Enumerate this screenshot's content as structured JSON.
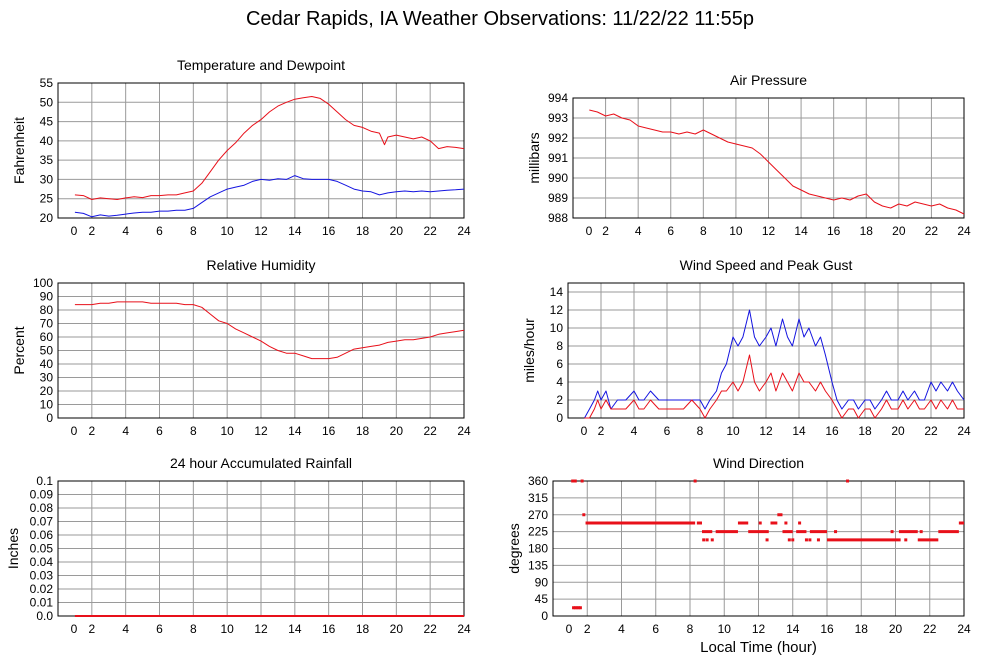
{
  "page": {
    "title": "Cedar Rapids, IA Weather Observations: 11/22/22 11:55p"
  },
  "colors": {
    "red": "#e8101a",
    "blue": "#1414e0",
    "grid": "#9a9a9a"
  },
  "chart_data": [
    {
      "id": "temp",
      "type": "line",
      "title": "Temperature and Dewpoint",
      "ylabel": "Fahrenheit",
      "xlabel": "",
      "xlim": [
        0,
        24
      ],
      "ylim": [
        20,
        55
      ],
      "xticks": [
        2,
        4,
        6,
        8,
        10,
        12,
        14,
        16,
        18,
        20,
        22,
        24
      ],
      "yticks": [
        20,
        25,
        30,
        35,
        40,
        45,
        50,
        55
      ],
      "grid": true,
      "series": [
        {
          "color": "red",
          "x": [
            1.0,
            1.5,
            2.0,
            2.5,
            3.0,
            3.5,
            4.0,
            4.5,
            5.0,
            5.5,
            6.0,
            6.5,
            7.0,
            7.5,
            8.0,
            8.5,
            9.0,
            9.5,
            10.0,
            10.5,
            11.0,
            11.5,
            12.0,
            12.5,
            13.0,
            13.5,
            14.0,
            14.5,
            15.0,
            15.5,
            16.0,
            16.5,
            17.0,
            17.5,
            18.0,
            18.5,
            19.0,
            19.3,
            19.5,
            20.0,
            20.5,
            21.0,
            21.5,
            22.0,
            22.5,
            23.0,
            23.5,
            24.0
          ],
          "y": [
            26,
            25.8,
            24.8,
            25.2,
            25.0,
            24.8,
            25.2,
            25.5,
            25.3,
            25.8,
            25.8,
            26.0,
            26.0,
            26.5,
            27.0,
            29.0,
            32.0,
            35.0,
            37.5,
            39.5,
            42.0,
            44.0,
            45.5,
            47.5,
            49.0,
            50.0,
            50.8,
            51.2,
            51.5,
            51.0,
            49.5,
            47.5,
            45.5,
            44.0,
            43.5,
            42.5,
            42.0,
            39.0,
            41.0,
            41.5,
            41.0,
            40.5,
            41.0,
            40.0,
            38.0,
            38.5,
            38.3,
            38.0
          ]
        },
        {
          "color": "blue",
          "x": [
            1.0,
            1.5,
            2.0,
            2.5,
            3.0,
            3.5,
            4.0,
            4.5,
            5.0,
            5.5,
            6.0,
            6.5,
            7.0,
            7.5,
            8.0,
            8.5,
            9.0,
            9.5,
            10.0,
            10.5,
            11.0,
            11.5,
            12.0,
            12.5,
            13.0,
            13.5,
            14.0,
            14.5,
            15.0,
            15.5,
            16.0,
            16.5,
            17.0,
            17.5,
            18.0,
            18.5,
            19.0,
            19.5,
            20.0,
            20.5,
            21.0,
            21.5,
            22.0,
            22.5,
            23.0,
            23.5,
            24.0
          ],
          "y": [
            21.5,
            21.2,
            20.3,
            20.8,
            20.5,
            20.7,
            21.0,
            21.3,
            21.5,
            21.5,
            21.8,
            21.8,
            22.0,
            22.0,
            22.5,
            24.0,
            25.5,
            26.5,
            27.5,
            28.0,
            28.5,
            29.5,
            30.0,
            29.8,
            30.2,
            30.0,
            31.0,
            30.2,
            30.0,
            30.0,
            30.0,
            29.5,
            28.5,
            27.5,
            27.0,
            26.8,
            26.0,
            26.5,
            26.8,
            27.0,
            26.8,
            27.0,
            26.8,
            27.0,
            27.2,
            27.3,
            27.5
          ]
        }
      ]
    },
    {
      "id": "pressure",
      "type": "line",
      "title": "Air Pressure",
      "ylabel": "millibars",
      "xlabel": "",
      "xlim": [
        0,
        24
      ],
      "ylim": [
        988,
        994
      ],
      "xticks": [
        2,
        4,
        6,
        8,
        10,
        12,
        14,
        16,
        18,
        20,
        22,
        24
      ],
      "yticks": [
        988,
        989,
        990,
        991,
        992,
        993,
        994
      ],
      "grid": true,
      "series": [
        {
          "color": "red",
          "x": [
            1.0,
            1.5,
            2.0,
            2.5,
            3.0,
            3.5,
            4.0,
            4.5,
            5.0,
            5.5,
            6.0,
            6.5,
            7.0,
            7.5,
            8.0,
            8.5,
            9.0,
            9.5,
            10.0,
            10.5,
            11.0,
            11.5,
            12.0,
            12.5,
            13.0,
            13.5,
            14.0,
            14.5,
            15.0,
            15.5,
            16.0,
            16.5,
            17.0,
            17.5,
            18.0,
            18.5,
            19.0,
            19.5,
            20.0,
            20.5,
            21.0,
            21.5,
            22.0,
            22.5,
            23.0,
            23.5,
            24.0
          ],
          "y": [
            993.4,
            993.3,
            993.1,
            993.2,
            993.0,
            992.9,
            992.6,
            992.5,
            992.4,
            992.3,
            992.3,
            992.2,
            992.3,
            992.2,
            992.4,
            992.2,
            992.0,
            991.8,
            991.7,
            991.6,
            991.5,
            991.2,
            990.8,
            990.4,
            990.0,
            989.6,
            989.4,
            989.2,
            989.1,
            989.0,
            988.9,
            989.0,
            988.9,
            989.1,
            989.2,
            988.8,
            988.6,
            988.5,
            988.7,
            988.6,
            988.8,
            988.7,
            988.6,
            988.7,
            988.5,
            988.4,
            988.2
          ]
        }
      ]
    },
    {
      "id": "humidity",
      "type": "line",
      "title": "Relative Humidity",
      "ylabel": "Percent",
      "xlabel": "",
      "xlim": [
        0,
        24
      ],
      "ylim": [
        0,
        100
      ],
      "xticks": [
        2,
        4,
        6,
        8,
        10,
        12,
        14,
        16,
        18,
        20,
        22,
        24
      ],
      "yticks": [
        0,
        10,
        20,
        30,
        40,
        50,
        60,
        70,
        80,
        90,
        100
      ],
      "grid": true,
      "series": [
        {
          "color": "red",
          "x": [
            1.0,
            1.5,
            2.0,
            2.5,
            3.0,
            3.5,
            4.0,
            4.5,
            5.0,
            5.5,
            6.0,
            6.5,
            7.0,
            7.5,
            8.0,
            8.5,
            9.0,
            9.5,
            10.0,
            10.5,
            11.0,
            11.5,
            12.0,
            12.5,
            13.0,
            13.5,
            14.0,
            14.5,
            15.0,
            15.5,
            16.0,
            16.5,
            17.0,
            17.5,
            18.0,
            18.5,
            19.0,
            19.5,
            20.0,
            20.5,
            21.0,
            21.5,
            22.0,
            22.5,
            23.0,
            23.5,
            24.0
          ],
          "y": [
            84,
            84,
            84,
            85,
            85,
            86,
            86,
            86,
            86,
            85,
            85,
            85,
            85,
            84,
            84,
            82,
            77,
            72,
            70,
            66,
            63,
            60,
            57,
            53,
            50,
            48,
            48,
            46,
            44,
            44,
            44,
            45,
            48,
            51,
            52,
            53,
            54,
            56,
            57,
            58,
            58,
            59,
            60,
            62,
            63,
            64,
            65
          ]
        }
      ]
    },
    {
      "id": "wind",
      "type": "line",
      "title": "Wind Speed and Peak Gust",
      "ylabel": "miles/hour",
      "xlabel": "",
      "xlim": [
        0,
        24
      ],
      "ylim": [
        0,
        15
      ],
      "xticks": [
        2,
        4,
        6,
        8,
        10,
        12,
        14,
        16,
        18,
        20,
        22,
        24
      ],
      "yticks": [
        0,
        2,
        4,
        6,
        8,
        10,
        12,
        14
      ],
      "grid": true,
      "series": [
        {
          "color": "blue",
          "x": [
            1.0,
            1.3,
            1.6,
            1.8,
            2.0,
            2.3,
            2.6,
            3.0,
            3.5,
            4.0,
            4.3,
            4.6,
            5.0,
            5.5,
            6.0,
            6.5,
            7.0,
            7.5,
            8.0,
            8.3,
            8.6,
            9.0,
            9.3,
            9.6,
            10.0,
            10.3,
            10.6,
            11.0,
            11.3,
            11.6,
            12.0,
            12.3,
            12.6,
            13.0,
            13.3,
            13.6,
            14.0,
            14.3,
            14.6,
            15.0,
            15.3,
            15.6,
            16.0,
            16.3,
            16.6,
            17.0,
            17.3,
            17.6,
            18.0,
            18.3,
            18.6,
            19.0,
            19.3,
            19.6,
            20.0,
            20.3,
            20.6,
            21.0,
            21.3,
            21.6,
            22.0,
            22.3,
            22.6,
            23.0,
            23.3,
            23.6,
            24.0
          ],
          "y": [
            0,
            1,
            2,
            3,
            2,
            3,
            1,
            2,
            2,
            3,
            2,
            2,
            3,
            2,
            2,
            2,
            2,
            2,
            2,
            1,
            2,
            3,
            5,
            6,
            9,
            8,
            9,
            12,
            9,
            8,
            9,
            10,
            8,
            11,
            9,
            8,
            11,
            9,
            10,
            8,
            9,
            7,
            4,
            2,
            1,
            2,
            2,
            1,
            2,
            2,
            1,
            2,
            3,
            2,
            2,
            3,
            2,
            3,
            2,
            2,
            4,
            3,
            4,
            3,
            4,
            3,
            2
          ]
        },
        {
          "color": "red",
          "x": [
            1.0,
            1.3,
            1.6,
            1.8,
            2.0,
            2.3,
            2.6,
            3.0,
            3.5,
            4.0,
            4.3,
            4.6,
            5.0,
            5.5,
            6.0,
            6.5,
            7.0,
            7.5,
            8.0,
            8.3,
            8.6,
            9.0,
            9.3,
            9.6,
            10.0,
            10.3,
            10.6,
            11.0,
            11.3,
            11.6,
            12.0,
            12.3,
            12.6,
            13.0,
            13.3,
            13.6,
            14.0,
            14.3,
            14.6,
            15.0,
            15.3,
            15.6,
            16.0,
            16.3,
            16.6,
            17.0,
            17.3,
            17.6,
            18.0,
            18.3,
            18.6,
            19.0,
            19.3,
            19.6,
            20.0,
            20.3,
            20.6,
            21.0,
            21.3,
            21.6,
            22.0,
            22.3,
            22.6,
            23.0,
            23.3,
            23.6,
            24.0
          ],
          "y": [
            0,
            0,
            1,
            2,
            1,
            2,
            1,
            1,
            1,
            2,
            1,
            1,
            2,
            1,
            1,
            1,
            1,
            2,
            1,
            0,
            1,
            2,
            3,
            3,
            4,
            3,
            4,
            7,
            4,
            3,
            4,
            5,
            3,
            5,
            4,
            3,
            5,
            4,
            4,
            3,
            4,
            3,
            2,
            1,
            0,
            1,
            1,
            0,
            1,
            1,
            0,
            1,
            2,
            1,
            1,
            2,
            1,
            2,
            1,
            1,
            2,
            1,
            2,
            1,
            2,
            1,
            1
          ]
        }
      ]
    },
    {
      "id": "rain",
      "type": "line",
      "title": "24 hour Accumulated Rainfall",
      "ylabel": "Inches",
      "xlabel": "",
      "xlim": [
        0,
        24
      ],
      "ylim": [
        0,
        0.1
      ],
      "xticks": [
        2,
        4,
        6,
        8,
        10,
        12,
        14,
        16,
        18,
        20,
        22,
        24
      ],
      "yticks": [
        0,
        0.01,
        0.02,
        0.03,
        0.04,
        0.05,
        0.06,
        0.07,
        0.08,
        0.09,
        0.1
      ],
      "ytick_labels": [
        "0.0",
        "0.01",
        "0.02",
        "0.03",
        "0.04",
        "0.05",
        "0.06",
        "0.07",
        "0.08",
        "0.09",
        "0.1"
      ],
      "grid": true,
      "series": [
        {
          "color": "red",
          "x": [
            1.0,
            24.0
          ],
          "y": [
            0,
            0
          ]
        }
      ]
    },
    {
      "id": "direction",
      "type": "scatter",
      "title": "Wind Direction",
      "ylabel": "degrees",
      "xlabel": "Local Time (hour)",
      "xlim": [
        0,
        24
      ],
      "ylim": [
        0,
        360
      ],
      "xticks": [
        2,
        4,
        6,
        8,
        10,
        12,
        14,
        16,
        18,
        20,
        22,
        24
      ],
      "yticks": [
        0,
        45,
        90,
        135,
        180,
        225,
        270,
        315,
        360
      ],
      "grid": true,
      "series": [
        {
          "color": "red",
          "points": [
            [
              1.15,
              360
            ],
            [
              1.3,
              360
            ],
            [
              1.7,
              360
            ],
            [
              1.2,
              22
            ],
            [
              1.3,
              22
            ],
            [
              1.4,
              22
            ],
            [
              1.5,
              22
            ],
            [
              1.6,
              22
            ],
            [
              1.8,
              270
            ],
            {
              "segment": [
                1.9,
                8.3,
                248
              ]
            },
            [
              8.3,
              360
            ],
            {
              "segment": [
                8.4,
                8.7,
                248
              ]
            },
            {
              "segment": [
                8.7,
                9.3,
                225
              ]
            },
            [
              8.8,
              203
            ],
            [
              9.0,
              203
            ],
            [
              9.3,
              203
            ],
            {
              "segment": [
                9.5,
                10.8,
                225
              ]
            },
            {
              "segment": [
                10.8,
                11.4,
                248
              ]
            },
            {
              "segment": [
                11.4,
                12.6,
                225
              ]
            },
            [
              12.1,
              248
            ],
            [
              12.5,
              203
            ],
            {
              "segment": [
                12.7,
                13.1,
                248
              ]
            },
            {
              "segment": [
                13.1,
                13.4,
                270
              ]
            },
            {
              "segment": [
                13.4,
                14.0,
                225
              ]
            },
            [
              13.6,
              248
            ],
            [
              13.8,
              203
            ],
            [
              14.0,
              203
            ],
            {
              "segment": [
                14.2,
                14.8,
                225
              ]
            },
            [
              14.4,
              248
            ],
            [
              14.8,
              203
            ],
            [
              15.0,
              203
            ],
            {
              "segment": [
                15.0,
                16.0,
                225
              ]
            },
            [
              15.5,
              203
            ],
            [
              16.5,
              225
            ],
            {
              "segment": [
                16.0,
                20.3,
                203
              ]
            },
            [
              17.2,
              360
            ],
            [
              19.8,
              225
            ],
            {
              "segment": [
                20.2,
                21.3,
                225
              ]
            },
            [
              20.6,
              203
            ],
            {
              "segment": [
                21.3,
                22.5,
                203
              ]
            },
            [
              21.5,
              225
            ],
            {
              "segment": [
                22.5,
                23.7,
                225
              ]
            },
            {
              "segment": [
                23.7,
                24.0,
                248
              ]
            }
          ]
        }
      ]
    }
  ]
}
